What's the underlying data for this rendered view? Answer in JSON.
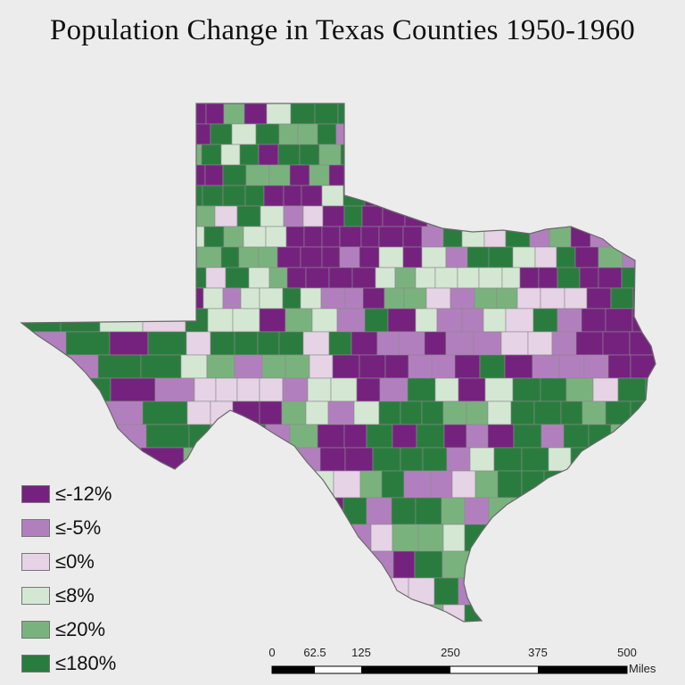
{
  "title": "Population Change in Texas Counties 1950-1960",
  "colors": {
    "c1": "#75227f",
    "c2": "#b27fbe",
    "c3": "#e6d3e6",
    "c4": "#d4e7d3",
    "c5": "#7ab27e",
    "c6": "#2a7c3e",
    "background": "#ececec",
    "border": "#8a8a8a"
  },
  "legend": {
    "items": [
      {
        "label": "≤-12%",
        "color_key": "c1"
      },
      {
        "label": "≤-5%",
        "color_key": "c2"
      },
      {
        "label": "≤0%",
        "color_key": "c3"
      },
      {
        "label": "≤8%",
        "color_key": "c4"
      },
      {
        "label": "≤20%",
        "color_key": "c5"
      },
      {
        "label": "≤180%",
        "color_key": "c6"
      }
    ]
  },
  "scalebar": {
    "ticks": [
      "0",
      "62.5",
      "125",
      "250",
      "375",
      "500"
    ],
    "unit": "Miles"
  }
}
